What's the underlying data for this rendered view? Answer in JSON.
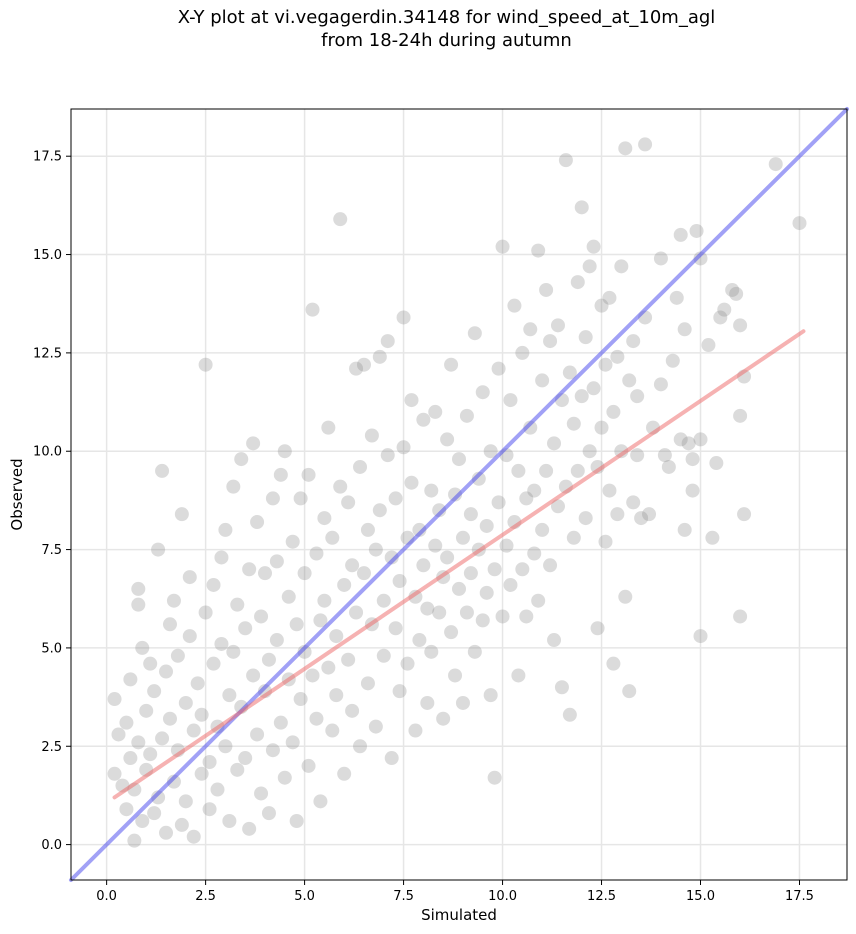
{
  "chart_data": {
    "type": "scatter",
    "title": "X-Y plot at vi.vegagerdin.34148 for wind_speed_at_10m_agl",
    "subtitle": "from 18-24h during autumn",
    "xlabel": "Simulated",
    "ylabel": "Observed",
    "xlim": [
      -0.9,
      18.7
    ],
    "ylim": [
      -0.9,
      18.7
    ],
    "x_ticks": [
      0.0,
      2.5,
      5.0,
      7.5,
      10.0,
      12.5,
      15.0,
      17.5
    ],
    "y_ticks": [
      0.0,
      2.5,
      5.0,
      7.5,
      10.0,
      12.5,
      15.0,
      17.5
    ],
    "x_tick_labels": [
      "0.0",
      "2.5",
      "5.0",
      "7.5",
      "10.0",
      "12.5",
      "15.0",
      "17.5"
    ],
    "y_tick_labels": [
      "0.0",
      "2.5",
      "5.0",
      "7.5",
      "10.0",
      "12.5",
      "15.0",
      "17.5"
    ],
    "grid": true,
    "point_color": "#888888",
    "identity_line": {
      "color": "#4444ee",
      "points": [
        [
          -0.9,
          -0.9
        ],
        [
          18.7,
          18.7
        ]
      ]
    },
    "fit_line": {
      "color": "#ee6666",
      "points": [
        [
          0.2,
          1.2
        ],
        [
          17.6,
          13.05
        ]
      ]
    },
    "points": [
      [
        0.2,
        1.8
      ],
      [
        0.2,
        3.7
      ],
      [
        0.3,
        2.8
      ],
      [
        0.4,
        1.5
      ],
      [
        0.5,
        0.9
      ],
      [
        0.5,
        3.1
      ],
      [
        0.6,
        2.2
      ],
      [
        0.6,
        4.2
      ],
      [
        0.7,
        1.4
      ],
      [
        0.7,
        0.1
      ],
      [
        0.8,
        2.6
      ],
      [
        0.8,
        6.5
      ],
      [
        0.8,
        6.1
      ],
      [
        0.9,
        0.6
      ],
      [
        0.9,
        5.0
      ],
      [
        1.0,
        3.4
      ],
      [
        1.0,
        1.9
      ],
      [
        1.1,
        2.3
      ],
      [
        1.1,
        4.6
      ],
      [
        1.2,
        0.8
      ],
      [
        1.2,
        3.9
      ],
      [
        1.3,
        7.5
      ],
      [
        1.3,
        1.2
      ],
      [
        1.4,
        9.5
      ],
      [
        1.4,
        2.7
      ],
      [
        1.5,
        4.4
      ],
      [
        1.5,
        0.3
      ],
      [
        1.6,
        5.6
      ],
      [
        1.6,
        3.2
      ],
      [
        1.7,
        6.2
      ],
      [
        1.7,
        1.6
      ],
      [
        1.8,
        2.4
      ],
      [
        1.8,
        4.8
      ],
      [
        1.9,
        0.5
      ],
      [
        1.9,
        8.4
      ],
      [
        2.0,
        3.6
      ],
      [
        2.0,
        1.1
      ],
      [
        2.1,
        5.3
      ],
      [
        2.1,
        6.8
      ],
      [
        2.2,
        2.9
      ],
      [
        2.2,
        0.2
      ],
      [
        2.3,
        4.1
      ],
      [
        2.4,
        1.8
      ],
      [
        2.4,
        3.3
      ],
      [
        2.5,
        12.2
      ],
      [
        2.5,
        5.9
      ],
      [
        2.6,
        2.1
      ],
      [
        2.6,
        0.9
      ],
      [
        2.7,
        4.6
      ],
      [
        2.7,
        6.6
      ],
      [
        2.8,
        3.0
      ],
      [
        2.8,
        1.4
      ],
      [
        2.9,
        7.3
      ],
      [
        2.9,
        5.1
      ],
      [
        3.0,
        2.5
      ],
      [
        3.0,
        8.0
      ],
      [
        3.1,
        3.8
      ],
      [
        3.1,
        0.6
      ],
      [
        3.2,
        4.9
      ],
      [
        3.2,
        9.1
      ],
      [
        3.3,
        1.9
      ],
      [
        3.3,
        6.1
      ],
      [
        3.4,
        3.5
      ],
      [
        3.4,
        9.8
      ],
      [
        3.5,
        2.2
      ],
      [
        3.5,
        5.5
      ],
      [
        3.6,
        0.4
      ],
      [
        3.6,
        7.0
      ],
      [
        3.7,
        4.3
      ],
      [
        3.7,
        10.2
      ],
      [
        3.8,
        2.8
      ],
      [
        3.8,
        8.2
      ],
      [
        3.9,
        5.8
      ],
      [
        3.9,
        1.3
      ],
      [
        4.0,
        3.9
      ],
      [
        4.0,
        6.9
      ],
      [
        4.1,
        0.8
      ],
      [
        4.1,
        4.7
      ],
      [
        4.2,
        8.8
      ],
      [
        4.2,
        2.4
      ],
      [
        4.3,
        7.2
      ],
      [
        4.3,
        5.2
      ],
      [
        4.4,
        9.4
      ],
      [
        4.4,
        3.1
      ],
      [
        4.5,
        10.0
      ],
      [
        4.5,
        1.7
      ],
      [
        4.6,
        6.3
      ],
      [
        4.6,
        4.2
      ],
      [
        4.7,
        7.7
      ],
      [
        4.7,
        2.6
      ],
      [
        4.8,
        5.6
      ],
      [
        4.8,
        0.6
      ],
      [
        4.9,
        8.8
      ],
      [
        4.9,
        3.7
      ],
      [
        5.0,
        4.9
      ],
      [
        5.0,
        6.9
      ],
      [
        5.1,
        2.0
      ],
      [
        5.1,
        9.4
      ],
      [
        5.2,
        4.3
      ],
      [
        5.2,
        13.6
      ],
      [
        5.3,
        7.4
      ],
      [
        5.3,
        3.2
      ],
      [
        5.4,
        5.7
      ],
      [
        5.4,
        1.1
      ],
      [
        5.5,
        8.3
      ],
      [
        5.5,
        6.2
      ],
      [
        5.6,
        10.6
      ],
      [
        5.6,
        4.5
      ],
      [
        5.7,
        2.9
      ],
      [
        5.7,
        7.8
      ],
      [
        5.8,
        5.3
      ],
      [
        5.8,
        3.8
      ],
      [
        5.9,
        9.1
      ],
      [
        5.9,
        15.9
      ],
      [
        6.0,
        6.6
      ],
      [
        6.0,
        1.8
      ],
      [
        6.1,
        4.7
      ],
      [
        6.1,
        8.7
      ],
      [
        6.2,
        7.1
      ],
      [
        6.2,
        3.4
      ],
      [
        6.3,
        12.1
      ],
      [
        6.3,
        5.9
      ],
      [
        6.4,
        9.6
      ],
      [
        6.4,
        2.5
      ],
      [
        6.5,
        6.9
      ],
      [
        6.5,
        12.2
      ],
      [
        6.6,
        4.1
      ],
      [
        6.6,
        8.0
      ],
      [
        6.7,
        5.6
      ],
      [
        6.7,
        10.4
      ],
      [
        6.8,
        7.5
      ],
      [
        6.8,
        3.0
      ],
      [
        6.9,
        8.5
      ],
      [
        6.9,
        12.4
      ],
      [
        7.0,
        6.2
      ],
      [
        7.0,
        4.8
      ],
      [
        7.1,
        9.9
      ],
      [
        7.1,
        12.8
      ],
      [
        7.2,
        7.3
      ],
      [
        7.2,
        2.2
      ],
      [
        7.3,
        5.5
      ],
      [
        7.3,
        8.8
      ],
      [
        7.4,
        6.7
      ],
      [
        7.4,
        3.9
      ],
      [
        7.5,
        10.1
      ],
      [
        7.5,
        13.4
      ],
      [
        7.6,
        7.8
      ],
      [
        7.6,
        4.6
      ],
      [
        7.7,
        9.2
      ],
      [
        7.7,
        11.3
      ],
      [
        7.8,
        6.3
      ],
      [
        7.8,
        2.9
      ],
      [
        7.9,
        8.0
      ],
      [
        7.9,
        5.2
      ],
      [
        8.0,
        10.8
      ],
      [
        8.0,
        7.1
      ],
      [
        8.1,
        6.0
      ],
      [
        8.1,
        3.6
      ],
      [
        8.2,
        9.0
      ],
      [
        8.2,
        4.9
      ],
      [
        8.3,
        7.6
      ],
      [
        8.3,
        11.0
      ],
      [
        8.4,
        5.9
      ],
      [
        8.4,
        8.5
      ],
      [
        8.5,
        6.8
      ],
      [
        8.5,
        3.2
      ],
      [
        8.6,
        10.3
      ],
      [
        8.6,
        7.3
      ],
      [
        8.7,
        12.2
      ],
      [
        8.7,
        5.4
      ],
      [
        8.8,
        8.9
      ],
      [
        8.8,
        4.3
      ],
      [
        8.9,
        6.5
      ],
      [
        8.9,
        9.8
      ],
      [
        9.0,
        7.8
      ],
      [
        9.0,
        3.6
      ],
      [
        9.1,
        5.9
      ],
      [
        9.1,
        10.9
      ],
      [
        9.2,
        8.4
      ],
      [
        9.2,
        6.9
      ],
      [
        9.3,
        13.0
      ],
      [
        9.3,
        4.9
      ],
      [
        9.4,
        7.5
      ],
      [
        9.4,
        9.3
      ],
      [
        9.5,
        5.7
      ],
      [
        9.5,
        11.5
      ],
      [
        9.6,
        8.1
      ],
      [
        9.6,
        6.4
      ],
      [
        9.7,
        3.8
      ],
      [
        9.7,
        10.0
      ],
      [
        9.8,
        7.0
      ],
      [
        9.8,
        1.7
      ],
      [
        9.9,
        12.1
      ],
      [
        9.9,
        8.7
      ],
      [
        10.0,
        5.8
      ],
      [
        10.0,
        15.2
      ],
      [
        10.1,
        7.6
      ],
      [
        10.1,
        9.9
      ],
      [
        10.2,
        6.6
      ],
      [
        10.2,
        11.3
      ],
      [
        10.3,
        8.2
      ],
      [
        10.3,
        13.7
      ],
      [
        10.4,
        4.3
      ],
      [
        10.4,
        9.5
      ],
      [
        10.5,
        7.0
      ],
      [
        10.5,
        12.5
      ],
      [
        10.6,
        8.8
      ],
      [
        10.6,
        5.8
      ],
      [
        10.7,
        10.6
      ],
      [
        10.7,
        13.1
      ],
      [
        10.8,
        7.4
      ],
      [
        10.8,
        9.0
      ],
      [
        10.9,
        15.1
      ],
      [
        10.9,
        6.2
      ],
      [
        11.0,
        11.8
      ],
      [
        11.0,
        8.0
      ],
      [
        11.1,
        9.5
      ],
      [
        11.1,
        14.1
      ],
      [
        11.2,
        7.1
      ],
      [
        11.2,
        12.8
      ],
      [
        11.3,
        10.2
      ],
      [
        11.3,
        5.2
      ],
      [
        11.4,
        8.6
      ],
      [
        11.4,
        13.2
      ],
      [
        11.5,
        11.3
      ],
      [
        11.5,
        4.0
      ],
      [
        11.6,
        9.1
      ],
      [
        11.6,
        17.4
      ],
      [
        11.7,
        12.0
      ],
      [
        11.7,
        3.3
      ],
      [
        11.8,
        10.7
      ],
      [
        11.8,
        7.8
      ],
      [
        11.9,
        14.3
      ],
      [
        11.9,
        9.5
      ],
      [
        12.0,
        16.2
      ],
      [
        12.0,
        11.4
      ],
      [
        12.1,
        8.3
      ],
      [
        12.1,
        12.9
      ],
      [
        12.2,
        10.0
      ],
      [
        12.2,
        14.7
      ],
      [
        12.3,
        15.2
      ],
      [
        12.3,
        11.6
      ],
      [
        12.4,
        9.6
      ],
      [
        12.4,
        5.5
      ],
      [
        12.5,
        13.7
      ],
      [
        12.5,
        10.6
      ],
      [
        12.6,
        7.7
      ],
      [
        12.6,
        12.2
      ],
      [
        12.7,
        9.0
      ],
      [
        12.7,
        13.9
      ],
      [
        12.8,
        11.0
      ],
      [
        12.8,
        4.6
      ],
      [
        12.9,
        8.4
      ],
      [
        12.9,
        12.4
      ],
      [
        13.0,
        14.7
      ],
      [
        13.0,
        10.0
      ],
      [
        13.1,
        17.7
      ],
      [
        13.1,
        6.3
      ],
      [
        13.2,
        11.8
      ],
      [
        13.2,
        3.9
      ],
      [
        13.3,
        12.8
      ],
      [
        13.3,
        8.7
      ],
      [
        13.4,
        9.9
      ],
      [
        13.4,
        11.4
      ],
      [
        13.5,
        8.3
      ],
      [
        13.6,
        17.8
      ],
      [
        13.6,
        13.4
      ],
      [
        13.7,
        8.4
      ],
      [
        13.8,
        10.6
      ],
      [
        14.0,
        11.7
      ],
      [
        14.0,
        14.9
      ],
      [
        14.1,
        9.9
      ],
      [
        14.2,
        9.6
      ],
      [
        14.3,
        12.3
      ],
      [
        14.4,
        13.9
      ],
      [
        14.5,
        10.3
      ],
      [
        14.5,
        15.5
      ],
      [
        14.6,
        13.1
      ],
      [
        14.6,
        8.0
      ],
      [
        14.7,
        10.2
      ],
      [
        14.8,
        9.0
      ],
      [
        14.8,
        9.8
      ],
      [
        14.9,
        15.6
      ],
      [
        15.0,
        14.9
      ],
      [
        15.0,
        10.3
      ],
      [
        15.0,
        5.3
      ],
      [
        15.2,
        12.7
      ],
      [
        15.3,
        7.8
      ],
      [
        15.4,
        9.7
      ],
      [
        15.5,
        13.4
      ],
      [
        15.6,
        13.6
      ],
      [
        15.8,
        14.1
      ],
      [
        15.9,
        14.0
      ],
      [
        16.0,
        13.2
      ],
      [
        16.0,
        10.9
      ],
      [
        16.0,
        5.8
      ],
      [
        16.1,
        11.9
      ],
      [
        16.1,
        8.4
      ],
      [
        16.9,
        17.3
      ],
      [
        17.5,
        15.8
      ]
    ]
  }
}
